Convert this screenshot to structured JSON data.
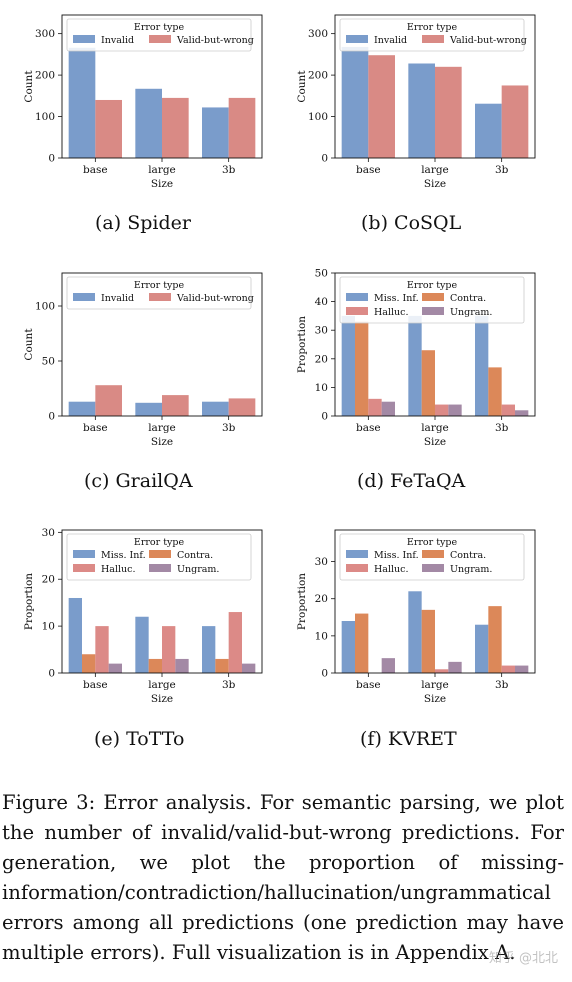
{
  "colors": {
    "invalid": "#7a9ccb",
    "valid_but_wrong": "#d98a85",
    "miss_inf": "#7a9ccb",
    "contra": "#dc8859",
    "halluc": "#dc8a87",
    "ungram": "#a389a5"
  },
  "chart_data": [
    {
      "id": "a",
      "type": "bar",
      "subcaption": "(a)  Spider",
      "categories": [
        "base",
        "large",
        "3b"
      ],
      "xlabel": "Size",
      "ylabel": "Count",
      "ylim": [
        0,
        345
      ],
      "yticks": [
        0,
        100,
        200,
        300
      ],
      "legend_title": "Error type",
      "legend_cols": 2,
      "series": [
        {
          "name": "Invalid",
          "color": "#7a9ccb",
          "values": [
            266,
            167,
            122
          ]
        },
        {
          "name": "Valid-but-wrong",
          "color": "#d98a85",
          "values": [
            140,
            145,
            145
          ]
        }
      ]
    },
    {
      "id": "b",
      "type": "bar",
      "subcaption": "(b)  CoSQL",
      "categories": [
        "base",
        "large",
        "3b"
      ],
      "xlabel": "Size",
      "ylabel": "Count",
      "ylim": [
        0,
        345
      ],
      "yticks": [
        0,
        100,
        200,
        300
      ],
      "legend_title": "Error type",
      "legend_cols": 2,
      "series": [
        {
          "name": "Invalid",
          "color": "#7a9ccb",
          "values": [
            268,
            228,
            131
          ]
        },
        {
          "name": "Valid-but-wrong",
          "color": "#d98a85",
          "values": [
            248,
            220,
            175
          ]
        }
      ]
    },
    {
      "id": "c",
      "type": "bar",
      "subcaption": "(c)  GrailQA",
      "categories": [
        "base",
        "large",
        "3b"
      ],
      "xlabel": "Size",
      "ylabel": "Count",
      "ylim": [
        0,
        130
      ],
      "yticks": [
        0,
        50,
        100
      ],
      "legend_title": "Error type",
      "legend_cols": 2,
      "series": [
        {
          "name": "Invalid",
          "color": "#7a9ccb",
          "values": [
            13,
            12,
            13
          ]
        },
        {
          "name": "Valid-but-wrong",
          "color": "#d98a85",
          "values": [
            28,
            19,
            16
          ]
        }
      ]
    },
    {
      "id": "d",
      "type": "bar",
      "subcaption": "(d)  FeTaQA",
      "categories": [
        "base",
        "large",
        "3b"
      ],
      "xlabel": "Size",
      "ylabel": "Proportion",
      "ylim": [
        0,
        50
      ],
      "yticks": [
        0,
        10,
        20,
        30,
        40,
        50
      ],
      "legend_title": "Error type",
      "legend_cols": 2,
      "series": [
        {
          "name": "Miss. Inf.",
          "color": "#7a9ccb",
          "values": [
            35,
            35,
            35
          ]
        },
        {
          "name": "Contra.",
          "color": "#dc8859",
          "values": [
            33,
            23,
            17
          ]
        },
        {
          "name": "Halluc.",
          "color": "#dc8a87",
          "values": [
            6,
            4,
            4
          ]
        },
        {
          "name": "Ungram.",
          "color": "#a389a5",
          "values": [
            5,
            4,
            2
          ]
        }
      ]
    },
    {
      "id": "e",
      "type": "bar",
      "subcaption": "(e)  ToTTo",
      "categories": [
        "base",
        "large",
        "3b"
      ],
      "xlabel": "Size",
      "ylabel": "Proportion",
      "ylim": [
        0,
        30.5
      ],
      "yticks": [
        0,
        10,
        20,
        30
      ],
      "legend_title": "Error type",
      "legend_cols": 2,
      "series": [
        {
          "name": "Miss. Inf.",
          "color": "#7a9ccb",
          "values": [
            16,
            12,
            10
          ]
        },
        {
          "name": "Contra.",
          "color": "#dc8859",
          "values": [
            4,
            3,
            3
          ]
        },
        {
          "name": "Halluc.",
          "color": "#dc8a87",
          "values": [
            10,
            10,
            13
          ]
        },
        {
          "name": "Ungram.",
          "color": "#a389a5",
          "values": [
            2,
            3,
            2
          ]
        }
      ]
    },
    {
      "id": "f",
      "type": "bar",
      "subcaption": "(f)  KVRET",
      "categories": [
        "base",
        "large",
        "3b"
      ],
      "xlabel": "Size",
      "ylabel": "Proportion",
      "ylim": [
        0,
        38.5
      ],
      "yticks": [
        0,
        10,
        20,
        30
      ],
      "legend_title": "Error type",
      "legend_cols": 2,
      "series": [
        {
          "name": "Miss. Inf.",
          "color": "#7a9ccb",
          "values": [
            14,
            22,
            13
          ]
        },
        {
          "name": "Contra.",
          "color": "#dc8859",
          "values": [
            16,
            17,
            18
          ]
        },
        {
          "name": "Halluc.",
          "color": "#dc8a87",
          "values": [
            0,
            1,
            2
          ]
        },
        {
          "name": "Ungram.",
          "color": "#a389a5",
          "values": [
            4,
            3,
            2
          ]
        }
      ]
    }
  ],
  "caption": "Figure 3:   Error analysis.  For semantic parsing, we plot the number of invalid/valid-but-wrong predictions. For generation, we plot the proportion of missing-information/contradiction/hallucination/ungrammatical errors among all predictions (one prediction may have multiple errors). Full visualization is in Appendix A.",
  "watermark": "知乎 @北北"
}
